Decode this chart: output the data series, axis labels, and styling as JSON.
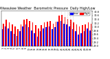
{
  "title": "Milwaukee Weather  Barometric Pressure  Daily High/Low",
  "background_color": "#ffffff",
  "color_high": "#ff0000",
  "color_low": "#0000ff",
  "color_dot_line": "#aaaaaa",
  "ylim_min": 29.0,
  "ylim_max": 30.85,
  "dates": [
    "1",
    "2",
    "3",
    "4",
    "5",
    "6",
    "7",
    "8",
    "9",
    "10",
    "11",
    "12",
    "13",
    "14",
    "15",
    "16",
    "17",
    "18",
    "19",
    "20",
    "21",
    "22",
    "23",
    "24",
    "25",
    "26",
    "27",
    "28",
    "29",
    "30",
    "31"
  ],
  "highs": [
    30.18,
    30.38,
    30.22,
    30.12,
    30.02,
    29.88,
    30.12,
    30.38,
    30.42,
    30.32,
    30.22,
    30.08,
    29.92,
    30.08,
    30.22,
    30.28,
    30.32,
    30.18,
    30.28,
    30.58,
    30.62,
    30.52,
    30.42,
    30.38,
    30.22,
    30.12,
    30.02,
    30.08,
    30.12,
    30.22,
    30.18
  ],
  "lows": [
    29.88,
    30.02,
    29.92,
    29.78,
    29.62,
    29.52,
    29.78,
    30.02,
    30.12,
    29.98,
    29.82,
    29.68,
    29.48,
    29.78,
    29.92,
    29.98,
    30.02,
    29.88,
    29.98,
    30.28,
    30.32,
    30.18,
    30.12,
    30.02,
    29.88,
    29.78,
    29.58,
    29.68,
    29.78,
    29.92,
    29.82
  ],
  "yticks": [
    29.0,
    29.2,
    29.4,
    29.6,
    29.8,
    30.0,
    30.2,
    30.4,
    30.6,
    30.8
  ],
  "ytick_labels": [
    "29.0",
    "29.2",
    "29.4",
    "29.6",
    "29.8",
    "30.0",
    "30.2",
    "30.4",
    "30.6",
    "30.8"
  ],
  "dotted_cols": [
    20,
    21,
    22,
    23,
    24
  ],
  "legend_labels": [
    "High",
    "Low"
  ],
  "title_fontsize": 3.5,
  "tick_fontsize": 2.5,
  "legend_fontsize": 2.8
}
